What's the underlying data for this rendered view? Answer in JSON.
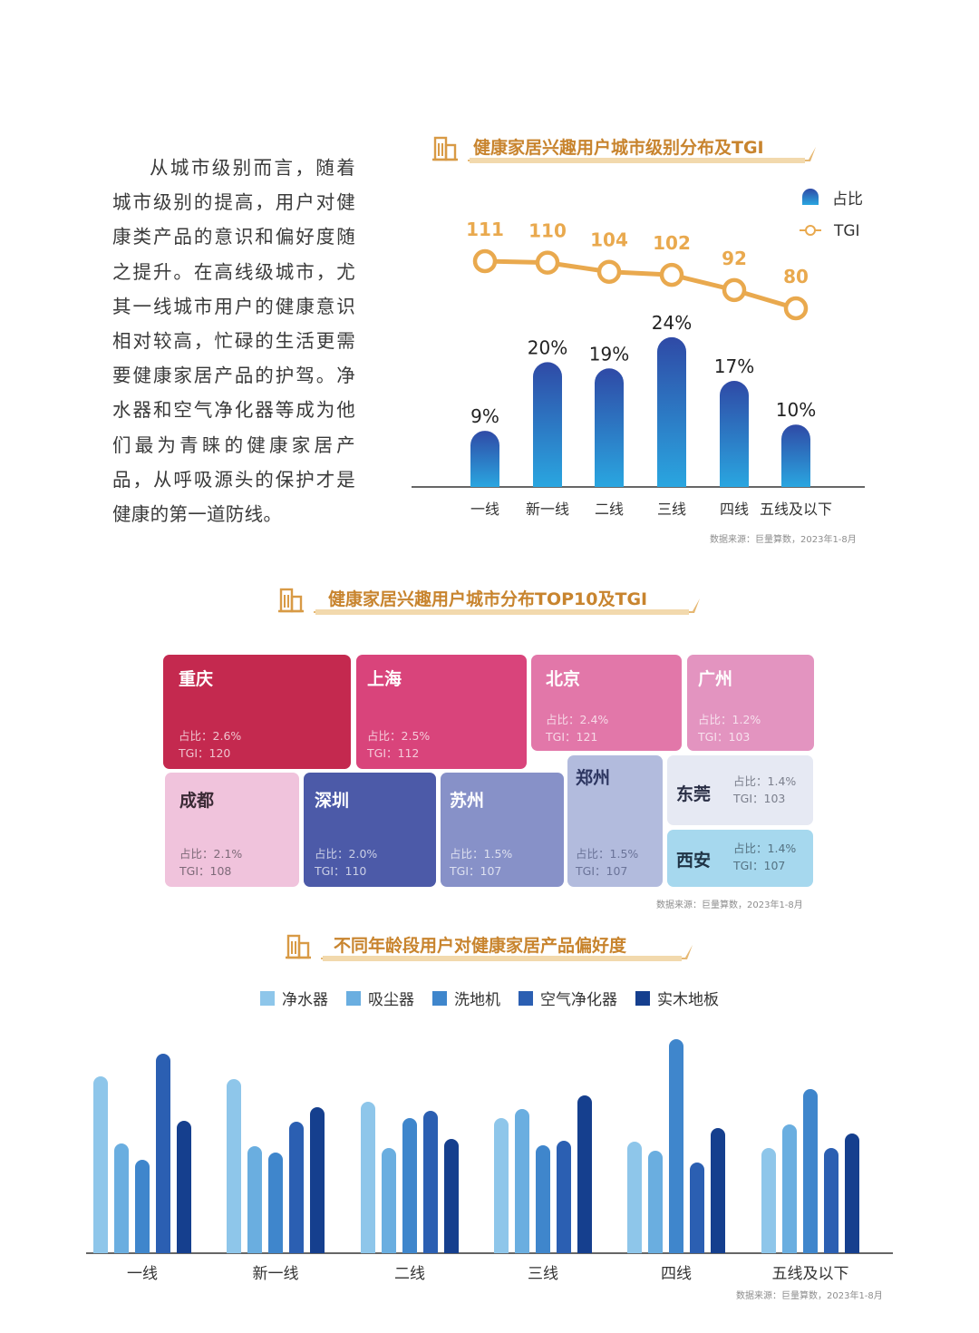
{
  "intro_text": "从城市级别而言，随着城市级别的提高，用户对健康类产品的意识和偏好度随之提升。在高线级城市，尤其一线城市用户的健康意识相对较高，忙碌的生活更需要健康家居产品的护驾。净水器和空气净化器等成为他们最为青睐的健康家居产品，从呼吸源头的保护才是健康的第一道防线。",
  "colors": {
    "title_orange": "#c8842e",
    "tgi_line": "#e9a94e",
    "bar_top": "#2f4aa6",
    "bar_bottom": "#2aa6e0"
  },
  "section1": {
    "title": "健康家居兴趣用户城市级别分布及TGI",
    "title_icon": "building-icon",
    "source": "数据来源：巨量算数，2023年1-8月"
  },
  "section2": {
    "title": "健康家居兴趣用户城市分布TOP10及TGI",
    "title_icon": "building-icon",
    "source": "数据来源：巨量算数，2023年1-8月"
  },
  "section3": {
    "title": "不同年龄段用户对健康家居产品偏好度",
    "title_icon": "building-icon",
    "source": "数据来源：巨量算数，2023年1-8月"
  },
  "chart_data": [
    {
      "type": "bar",
      "title": "健康家居兴趣用户城市级别分布及TGI",
      "categories": [
        "一线",
        "新一线",
        "二线",
        "三线",
        "四线",
        "五线及以下"
      ],
      "series": [
        {
          "name": "占比",
          "values": [
            9,
            20,
            19,
            24,
            17,
            10
          ],
          "labels": [
            "9%",
            "20%",
            "19%",
            "24%",
            "17%",
            "10%"
          ]
        },
        {
          "name": "TGI",
          "type": "line",
          "values": [
            111,
            110,
            104,
            102,
            92,
            80
          ]
        }
      ],
      "ylim": [
        0,
        25
      ],
      "legend": [
        "占比",
        "TGI"
      ],
      "legend_position": "top-right"
    },
    {
      "type": "table",
      "title": "健康家居兴趣用户城市分布TOP10及TGI",
      "stat_prefix": {
        "share": "占比：",
        "tgi": "TGI："
      },
      "cities": [
        {
          "name": "重庆",
          "share": "2.6%",
          "tgi": "120",
          "color": "#c4294f"
        },
        {
          "name": "上海",
          "share": "2.5%",
          "tgi": "112",
          "color": "#d9447b"
        },
        {
          "name": "北京",
          "share": "2.4%",
          "tgi": "121",
          "color": "#e277a9"
        },
        {
          "name": "广州",
          "share": "1.2%",
          "tgi": "103",
          "color": "#e394c0"
        },
        {
          "name": "成都",
          "share": "2.1%",
          "tgi": "108",
          "color": "#f0c3dc"
        },
        {
          "name": "深圳",
          "share": "2.0%",
          "tgi": "110",
          "color": "#4c5aa8"
        },
        {
          "name": "苏州",
          "share": "1.5%",
          "tgi": "107",
          "color": "#8791c8"
        },
        {
          "name": "郑州",
          "share": "1.5%",
          "tgi": "107",
          "color": "#b2bbdd"
        },
        {
          "name": "东莞",
          "share": "1.4%",
          "tgi": "103",
          "color": "#e6e9f3"
        },
        {
          "name": "西安",
          "share": "1.4%",
          "tgi": "107",
          "color": "#a6d8ee"
        }
      ]
    },
    {
      "type": "bar",
      "title": "不同年龄段用户对健康家居产品偏好度",
      "categories": [
        "一线",
        "新一线",
        "二线",
        "三线",
        "四线",
        "五线及以下"
      ],
      "series": [
        {
          "name": "净水器",
          "color": "#8ec6ea",
          "values": [
            195,
            192,
            167,
            149,
            123,
            116
          ]
        },
        {
          "name": "吸尘器",
          "color": "#6aaee0",
          "values": [
            121,
            118,
            116,
            159,
            113,
            142
          ]
        },
        {
          "name": "洗地机",
          "color": "#3f86cc",
          "values": [
            103,
            111,
            149,
            119,
            236,
            181
          ]
        },
        {
          "name": "空气净化器",
          "color": "#2b5fb2",
          "values": [
            220,
            145,
            157,
            124,
            100,
            116
          ]
        },
        {
          "name": "实木地板",
          "color": "#153f8e",
          "values": [
            146,
            161,
            126,
            174,
            138,
            132
          ]
        }
      ],
      "ylabel": "",
      "ylim": [
        0,
        250
      ],
      "legend_position": "top"
    }
  ]
}
